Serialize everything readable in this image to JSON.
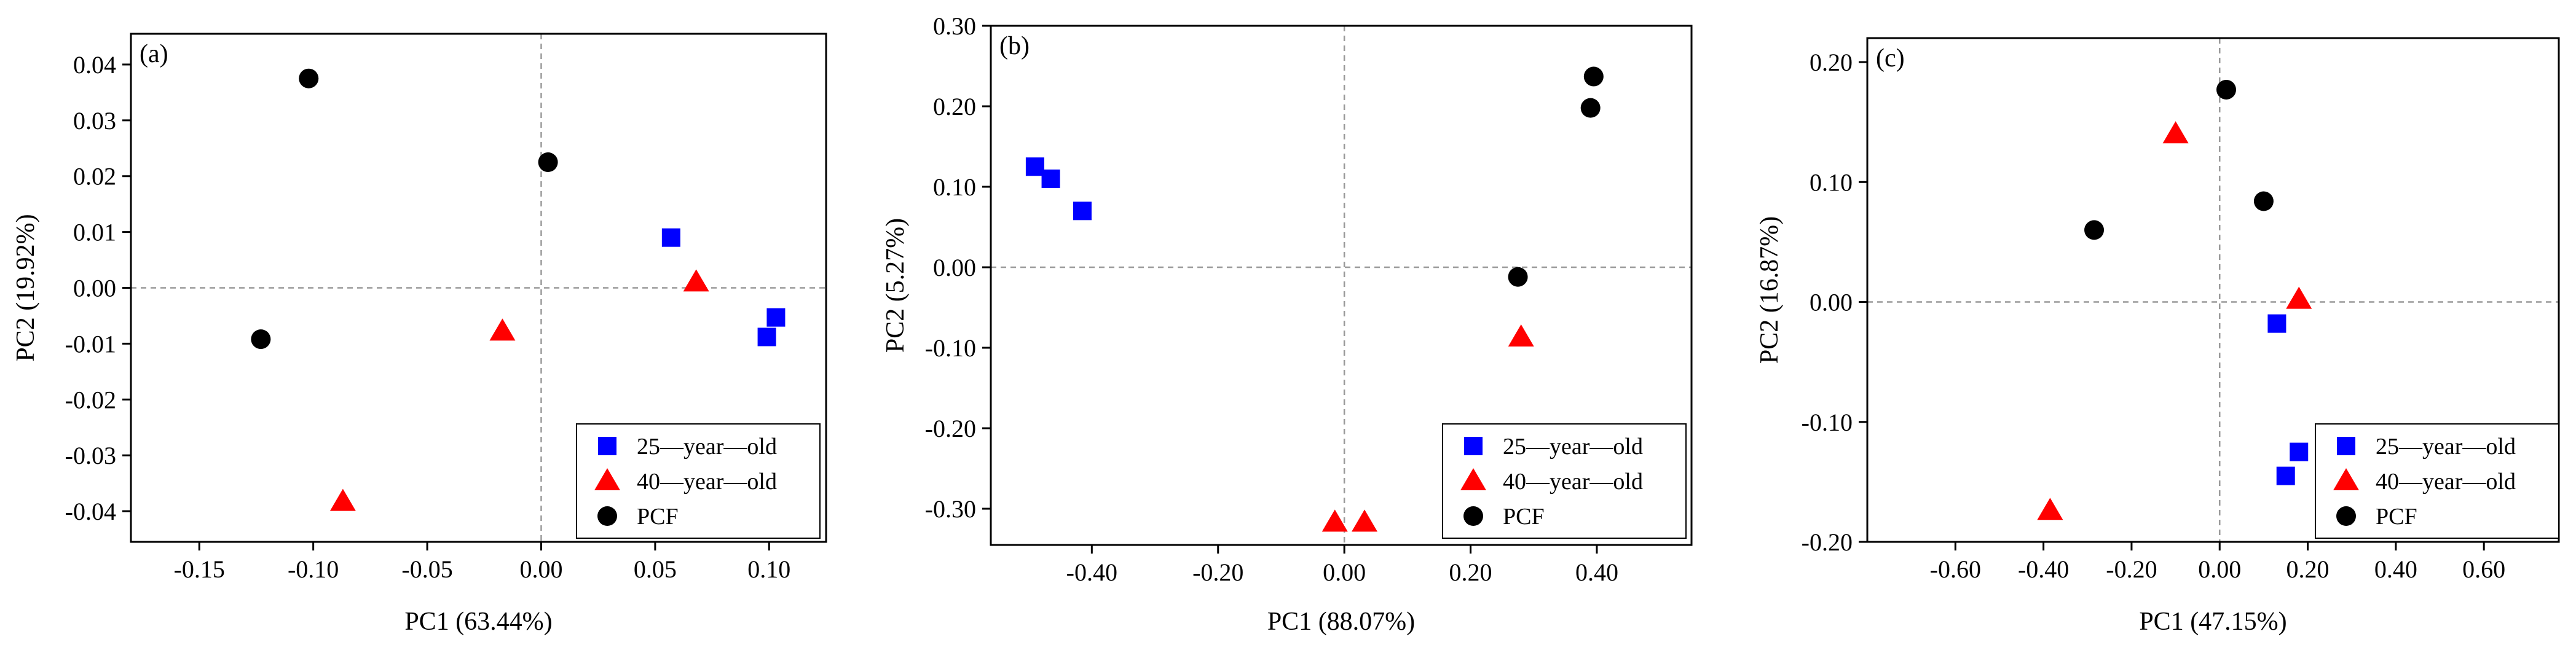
{
  "chart_data": [
    {
      "type": "scatter",
      "panel_label": "(a)",
      "xlabel": "PC1 (63.44%)",
      "ylabel": "PC2 (19.92%)",
      "xlim": [
        -0.18,
        0.125
      ],
      "ylim": [
        -0.0455,
        0.0455
      ],
      "xticks": [
        -0.15,
        -0.1,
        -0.05,
        0.0,
        0.05,
        0.1
      ],
      "xtick_labels": [
        "-0.15",
        "-0.10",
        "-0.05",
        "0.00",
        "0.05",
        "0.10"
      ],
      "yticks": [
        0.04,
        0.03,
        0.02,
        0.01,
        0.0,
        -0.01,
        -0.02,
        -0.03,
        -0.04
      ],
      "ytick_labels": [
        "0.04",
        "0.03",
        "0.02",
        "0.01",
        "0.00",
        "-0.01",
        "-0.02",
        "-0.03",
        "-0.04"
      ],
      "legend_position": "bottom-right",
      "series": [
        {
          "name": "25—year—old",
          "marker": "square",
          "color": "#0000ff",
          "points": [
            [
              0.057,
              0.009
            ],
            [
              0.103,
              -0.0053
            ],
            [
              0.099,
              -0.0088
            ]
          ]
        },
        {
          "name": "40—year—old",
          "marker": "triangle",
          "color": "#ff0000",
          "points": [
            [
              0.068,
              0.001
            ],
            [
              -0.017,
              -0.0078
            ],
            [
              -0.087,
              -0.0383
            ]
          ]
        },
        {
          "name": "PCF",
          "marker": "circle",
          "color": "#000000",
          "points": [
            [
              -0.102,
              0.0375
            ],
            [
              0.003,
              0.0225
            ],
            [
              -0.123,
              -0.0092
            ]
          ]
        }
      ]
    },
    {
      "type": "scatter",
      "panel_label": "(b)",
      "xlabel": "PC1 (88.07%)",
      "ylabel": "PC2 (5.27%)",
      "xlim": [
        -0.56,
        0.55
      ],
      "ylim": [
        -0.345,
        0.3
      ],
      "xticks": [
        -0.4,
        -0.2,
        0.0,
        0.2,
        0.4
      ],
      "xtick_labels": [
        "-0.40",
        "-0.20",
        "0.00",
        "0.20",
        "0.40"
      ],
      "yticks": [
        0.3,
        0.2,
        0.1,
        0.0,
        -0.1,
        -0.2,
        -0.3
      ],
      "ytick_labels": [
        "0.30",
        "0.20",
        "0.10",
        "0.00",
        "-0.10",
        "-0.20",
        "-0.30"
      ],
      "legend_position": "bottom-right",
      "series": [
        {
          "name": "25—year—old",
          "marker": "square",
          "color": "#0000ff",
          "points": [
            [
              -0.49,
              0.125
            ],
            [
              -0.465,
              0.11
            ],
            [
              -0.415,
              0.07
            ]
          ]
        },
        {
          "name": "40—year—old",
          "marker": "triangle",
          "color": "#ff0000",
          "points": [
            [
              0.28,
              -0.087
            ],
            [
              -0.015,
              -0.317
            ],
            [
              0.032,
              -0.317
            ]
          ]
        },
        {
          "name": "PCF",
          "marker": "circle",
          "color": "#000000",
          "points": [
            [
              0.395,
              0.237
            ],
            [
              0.39,
              0.198
            ],
            [
              0.275,
              -0.012
            ]
          ]
        }
      ]
    },
    {
      "type": "scatter",
      "panel_label": "(c)",
      "xlabel": "PC1 (47.15%)",
      "ylabel": "PC2 (16.87%)",
      "xlim": [
        -0.8,
        0.77
      ],
      "ylim": [
        -0.2,
        0.22
      ],
      "xticks": [
        -0.6,
        -0.4,
        -0.2,
        0.0,
        0.2,
        0.4,
        0.6
      ],
      "xtick_labels": [
        "-0.60",
        "-0.40",
        "-0.20",
        "0.00",
        "0.20",
        "0.40",
        "0.60"
      ],
      "yticks": [
        0.2,
        0.1,
        0.0,
        -0.1,
        -0.2
      ],
      "ytick_labels": [
        "0.20",
        "0.10",
        "0.00",
        "-0.10",
        "-0.20"
      ],
      "legend_position": "bottom-right",
      "series": [
        {
          "name": "25—year—old",
          "marker": "square",
          "color": "#0000ff",
          "points": [
            [
              0.13,
              -0.018
            ],
            [
              0.18,
              -0.125
            ],
            [
              0.15,
              -0.145
            ]
          ]
        },
        {
          "name": "40—year—old",
          "marker": "triangle",
          "color": "#ff0000",
          "points": [
            [
              -0.1,
              0.14
            ],
            [
              0.18,
              0.002
            ],
            [
              -0.385,
              -0.174
            ]
          ]
        },
        {
          "name": "PCF",
          "marker": "circle",
          "color": "#000000",
          "points": [
            [
              0.015,
              0.177
            ],
            [
              -0.285,
              0.06
            ],
            [
              0.1,
              0.084
            ]
          ]
        }
      ]
    }
  ]
}
